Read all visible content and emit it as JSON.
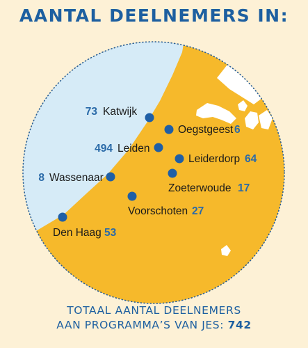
{
  "title": "AANTAL DEELNEMERS IN:",
  "places": [
    {
      "id": "katwijk",
      "name": "Katwijk",
      "count": "73"
    },
    {
      "id": "oegstgeest",
      "name": "Oegstgeest",
      "count": "6"
    },
    {
      "id": "leiden",
      "name": "Leiden",
      "count": "494"
    },
    {
      "id": "leiderdorp",
      "name": "Leiderdorp",
      "count": "64"
    },
    {
      "id": "wassenaar",
      "name": "Wassenaar",
      "count": "8"
    },
    {
      "id": "zoeterwoude",
      "name": "Zoeterwoude",
      "count": "17"
    },
    {
      "id": "voorschoten",
      "name": "Voorschoten",
      "count": "27"
    },
    {
      "id": "den-haag",
      "name": "Den Haag",
      "count": "53"
    }
  ],
  "footer": {
    "line1": "TOTAAL AANTAL DEELNEMERS",
    "line2_prefix": "AAN PROGRAMMA’S VAN JES: ",
    "total": "742"
  },
  "colors": {
    "background": "#fdf1d6",
    "land": "#f6b92b",
    "sea": "#d6ebf7",
    "marker": "#1f5fa6",
    "title": "#1d5fa0"
  }
}
